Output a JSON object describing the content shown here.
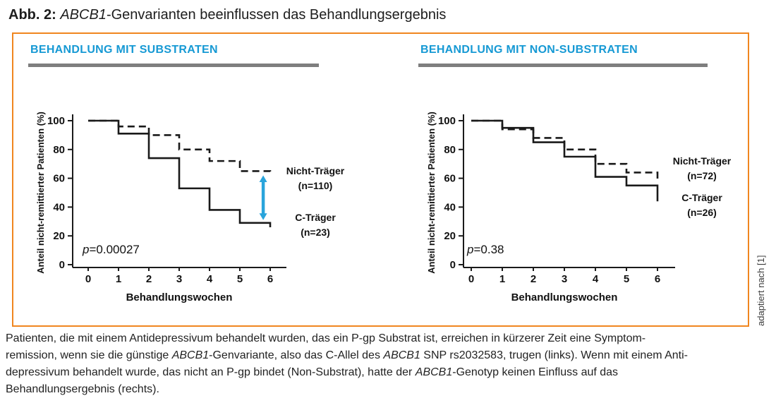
{
  "title": {
    "segments": [
      {
        "t": "Abb. 2: ",
        "b": true
      },
      {
        "t": "ABCB1",
        "i": true
      },
      {
        "t": "-Genvarianten beeinflussen das Behandlungsergebnis"
      }
    ]
  },
  "panels": [
    {
      "header": "BEHANDLUNG MIT SUBSTRATEN"
    },
    {
      "header": "BEHANDLUNG MIT NON-SUBSTRATEN"
    }
  ],
  "credit": "adaptiert nach [1]",
  "colors": {
    "header_cyan": "#1699d4",
    "box_orange": "#f0861f",
    "divider_gray": "#7e7e7e",
    "curve_black": "#1a1a1a",
    "arrow_blue": "#29a4db"
  },
  "chart_data": [
    {
      "type": "line",
      "subtype": "kaplan-meier-step",
      "title": "Behandlung mit Substraten",
      "xlabel": "Behandlungswochen",
      "ylabel": "Anteil nicht-remittierter Patienten (%)",
      "x_ticks": [
        0,
        1,
        2,
        3,
        4,
        5,
        6
      ],
      "y_ticks": [
        0,
        20,
        40,
        60,
        80,
        100
      ],
      "xlim": [
        0,
        6
      ],
      "ylim": [
        0,
        100
      ],
      "p": {
        "label": "p",
        "value": "=0.00027"
      },
      "series": [
        {
          "name": "Nicht-Träger",
          "n": 110,
          "label_lines": [
            "Nicht-Träger",
            "(n=110)"
          ],
          "style": "dashed",
          "interval_start_weeks": [
            0,
            1,
            2,
            3,
            4,
            5
          ],
          "step_values": [
            100,
            96,
            90,
            80,
            72,
            65
          ],
          "final_week": 6,
          "end_value": 62
        },
        {
          "name": "C-Träger",
          "n": 23,
          "label_lines": [
            "C-Träger",
            "(n=23)"
          ],
          "style": "solid",
          "interval_start_weeks": [
            0,
            1,
            2,
            3,
            4,
            5
          ],
          "step_values": [
            100,
            91,
            74,
            53,
            38,
            29
          ],
          "final_week": 6,
          "end_value": 26
        }
      ],
      "annotation": {
        "type": "double-arrow",
        "x_week": 5.77,
        "from_pct": 62,
        "to_pct": 31,
        "color": "#29a4db"
      }
    },
    {
      "type": "line",
      "subtype": "kaplan-meier-step",
      "title": "Behandlung mit Non-Substraten",
      "xlabel": "Behandlungswochen",
      "ylabel": "Anteil nicht-remittierter Patienten (%)",
      "x_ticks": [
        0,
        1,
        2,
        3,
        4,
        5,
        6
      ],
      "y_ticks": [
        0,
        20,
        40,
        60,
        80,
        100
      ],
      "xlim": [
        0,
        6
      ],
      "ylim": [
        0,
        100
      ],
      "p": {
        "label": "p",
        "value": "=0.38"
      },
      "series": [
        {
          "name": "Nicht-Träger",
          "n": 72,
          "label_lines": [
            "Nicht-Träger",
            "(n=72)"
          ],
          "style": "dashed",
          "interval_start_weeks": [
            0,
            1,
            2,
            3,
            4,
            5
          ],
          "step_values": [
            100,
            94,
            88,
            80,
            70,
            64
          ],
          "final_week": 6,
          "end_value": 58
        },
        {
          "name": "C-Träger",
          "n": 26,
          "label_lines": [
            "C-Träger",
            "(n=26)"
          ],
          "style": "solid",
          "interval_start_weeks": [
            0,
            1,
            2,
            3,
            4,
            5
          ],
          "step_values": [
            100,
            95,
            85,
            75,
            61,
            55
          ],
          "final_week": 6,
          "end_value": 44
        }
      ],
      "annotation": null
    }
  ],
  "caption": {
    "lines": [
      [
        {
          "t": "Patienten, die mit einem Antidepressivum behandelt wurden, das ein P-gp Substrat ist, erreichen in kürzerer Zeit eine Symptom-"
        }
      ],
      [
        {
          "t": "remission, wenn sie die günstige "
        },
        {
          "t": "ABCB1",
          "i": true
        },
        {
          "t": "-Genvariante, also das C-Allel des "
        },
        {
          "t": "ABCB1",
          "i": true
        },
        {
          "t": " SNP rs2032583, trugen (links). Wenn mit einem Anti-"
        }
      ],
      [
        {
          "t": "depressivum behandelt wurde, das nicht an P-gp bindet (Non-Substrat), hatte der "
        },
        {
          "t": "ABCB1",
          "i": true
        },
        {
          "t": "-Genotyp keinen Einfluss auf das"
        }
      ],
      [
        {
          "t": "Behandlungsergebnis (rechts)."
        }
      ]
    ]
  }
}
